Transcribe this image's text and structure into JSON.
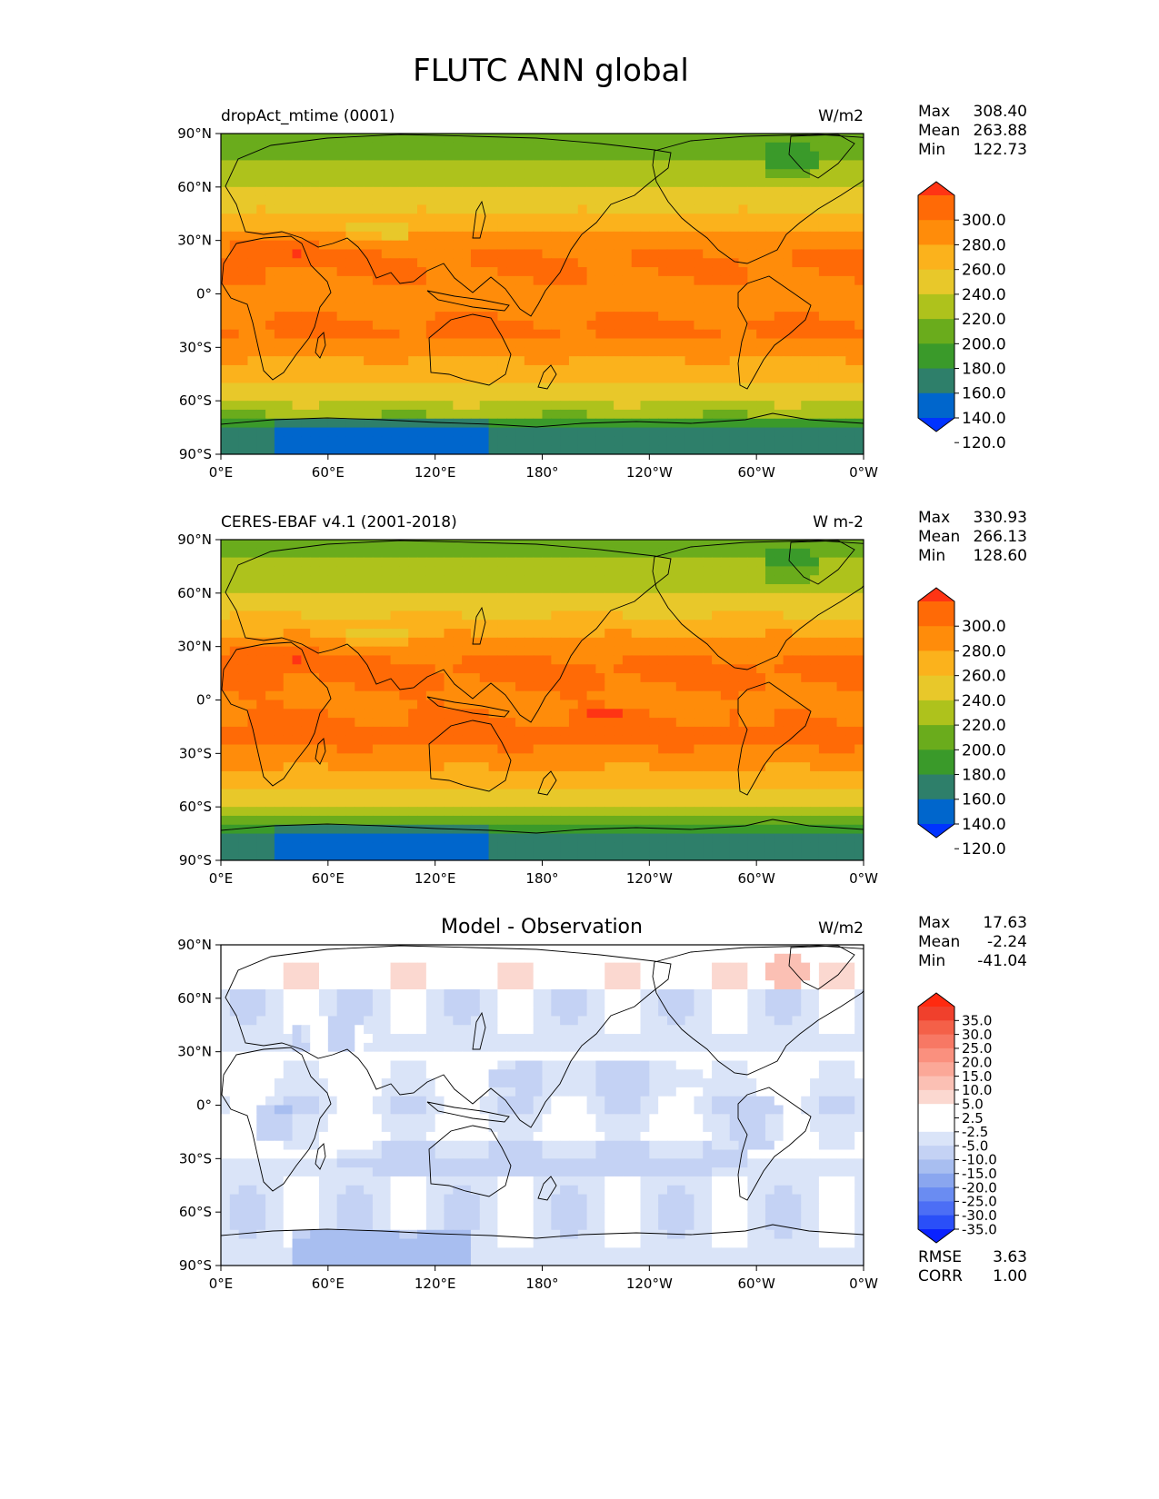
{
  "figure_title": "FLUTC ANN global",
  "colors": {
    "abs_levels": [
      "#0033ff",
      "#0066cc",
      "#2e7f6a",
      "#3a9a2a",
      "#6aac1c",
      "#aec21c",
      "#e8c82a",
      "#fbb21c",
      "#ff8c0a",
      "#ff6a06",
      "#ff3414"
    ],
    "diff_levels": [
      "#0a22ff",
      "#2a4ff8",
      "#4c6ef5",
      "#6a8cf2",
      "#8aa6ef",
      "#a8bef0",
      "#c4d2f4",
      "#dae4f8",
      "#ffffff",
      "#ffffff",
      "#fbd8d0",
      "#fbc0b4",
      "#fba898",
      "#fa907e",
      "#f77864",
      "#f46048",
      "#f0402c",
      "#ff2a10"
    ],
    "coast": "#000000"
  },
  "chart_data": [
    {
      "type": "heatmap",
      "name": "model",
      "title": "dropAct_mtime (0001)",
      "units": "W/m2",
      "stats": {
        "max_label": "Max",
        "max": "308.40",
        "mean_label": "Mean",
        "mean": "263.88",
        "min_label": "Min",
        "min": "122.73"
      },
      "x_ticks": [
        "0°E",
        "60°E",
        "120°E",
        "180°",
        "120°W",
        "60°W",
        "0°W"
      ],
      "y_ticks": [
        "90°N",
        "60°N",
        "30°N",
        "0°",
        "30°S",
        "60°S",
        "90°S"
      ],
      "xlim": [
        0,
        360
      ],
      "ylim": [
        -90,
        90
      ],
      "colorbar": {
        "levels": [
          110,
          120,
          140,
          160,
          180,
          200,
          220,
          240,
          260,
          280,
          300,
          310
        ],
        "tick_labels": [
          "300.0",
          "280.0",
          "260.0",
          "240.0",
          "220.0",
          "200.0",
          "180.0",
          "160.0",
          "140.0",
          "120.0"
        ],
        "extend": "both"
      },
      "field": {
        "type": "flutc",
        "zonal": [
          [
            -90,
            160
          ],
          [
            -83,
            140
          ],
          [
            -75,
            162
          ],
          [
            -70,
            185
          ],
          [
            -66,
            210
          ],
          [
            -60,
            225
          ],
          [
            -50,
            240
          ],
          [
            -40,
            255
          ],
          [
            -30,
            270
          ],
          [
            -25,
            282
          ],
          [
            -20,
            282
          ],
          [
            -10,
            278
          ],
          [
            0,
            274
          ],
          [
            10,
            280
          ],
          [
            20,
            282
          ],
          [
            30,
            272
          ],
          [
            35,
            262
          ],
          [
            40,
            252
          ],
          [
            45,
            243
          ],
          [
            50,
            233
          ],
          [
            55,
            226
          ],
          [
            60,
            222
          ],
          [
            65,
            212
          ],
          [
            70,
            202
          ],
          [
            80,
            198
          ],
          [
            90,
            196
          ]
        ]
      }
    },
    {
      "type": "heatmap",
      "name": "obs",
      "title": "CERES-EBAF v4.1 (2001-2018)",
      "units": "W m-2",
      "stats": {
        "max_label": "Max",
        "max": "330.93",
        "mean_label": "Mean",
        "mean": "266.13",
        "min_label": "Min",
        "min": "128.60"
      },
      "x_ticks": [
        "0°E",
        "60°E",
        "120°E",
        "180°",
        "120°W",
        "60°W",
        "0°W"
      ],
      "y_ticks": [
        "90°N",
        "60°N",
        "30°N",
        "0°",
        "30°S",
        "60°S",
        "90°S"
      ],
      "xlim": [
        0,
        360
      ],
      "ylim": [
        -90,
        90
      ],
      "colorbar": {
        "levels": [
          110,
          120,
          140,
          160,
          180,
          200,
          220,
          240,
          260,
          280,
          300,
          310
        ],
        "tick_labels": [
          "300.0",
          "280.0",
          "260.0",
          "240.0",
          "220.0",
          "200.0",
          "180.0",
          "160.0",
          "140.0",
          "120.0"
        ],
        "extend": "both"
      },
      "field": {
        "type": "flutc",
        "zonal": [
          [
            -90,
            156
          ],
          [
            -83,
            148
          ],
          [
            -75,
            160
          ],
          [
            -70,
            182
          ],
          [
            -66,
            208
          ],
          [
            -60,
            225
          ],
          [
            -50,
            242
          ],
          [
            -40,
            258
          ],
          [
            -30,
            272
          ],
          [
            -25,
            284
          ],
          [
            -20,
            284
          ],
          [
            -10,
            281
          ],
          [
            0,
            276
          ],
          [
            10,
            282
          ],
          [
            20,
            283
          ],
          [
            30,
            273
          ],
          [
            35,
            263
          ],
          [
            40,
            253
          ],
          [
            45,
            244
          ],
          [
            50,
            235
          ],
          [
            55,
            228
          ],
          [
            60,
            223
          ],
          [
            65,
            214
          ],
          [
            70,
            205
          ],
          [
            80,
            200
          ],
          [
            90,
            198
          ]
        ]
      }
    },
    {
      "type": "heatmap",
      "name": "diff",
      "title": "Model - Observation",
      "units": "W/m2",
      "stats": {
        "max_label": "Max",
        "max": "17.63",
        "mean_label": "Mean",
        "mean": "-2.24",
        "min_label": "Min",
        "min": "-41.04"
      },
      "x_ticks": [
        "0°E",
        "60°E",
        "120°E",
        "180°",
        "120°W",
        "60°W",
        "0°W"
      ],
      "y_ticks": [
        "90°N",
        "60°N",
        "30°N",
        "0°",
        "30°S",
        "60°S",
        "90°S"
      ],
      "xlim": [
        0,
        360
      ],
      "ylim": [
        -90,
        90
      ],
      "colorbar": {
        "levels": [
          -40,
          -35,
          -30,
          -25,
          -20,
          -15,
          -10,
          -5,
          -2.5,
          0,
          2.5,
          5,
          10,
          15,
          20,
          25,
          30,
          35,
          40
        ],
        "tick_labels": [
          "35.0",
          "30.0",
          "25.0",
          "20.0",
          "15.0",
          "10.0",
          "5.0",
          "2.5",
          "-2.5",
          "-5.0",
          "-10.0",
          "-15.0",
          "-20.0",
          "-25.0",
          "-30.0",
          "-35.0"
        ],
        "extend": "both"
      },
      "metrics": {
        "rmse_label": "RMSE",
        "rmse": "3.63",
        "corr_label": "CORR",
        "corr": "1.00"
      },
      "field": {
        "type": "diff"
      }
    }
  ]
}
